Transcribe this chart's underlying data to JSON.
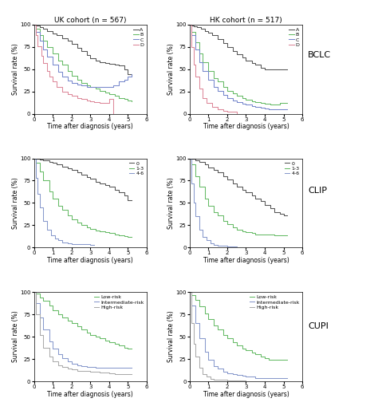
{
  "title_uk": "UK cohort (n = 567)",
  "title_hk": "HK cohort (n = 517)",
  "row_labels": [
    "BCLC",
    "CLIP",
    "CUPI"
  ],
  "xlabel": "Time after diagnosis (years)",
  "ylabel": "Survival rate (%)",
  "xlim": [
    0,
    6
  ],
  "ylim": [
    0,
    100
  ],
  "xticks": [
    0,
    1,
    2,
    3,
    4,
    5,
    6
  ],
  "yticks": [
    0,
    25,
    50,
    75,
    100
  ],
  "bclc_legend": [
    "A",
    "B",
    "C",
    "D"
  ],
  "clip_legend": [
    "0",
    "1-3",
    "4-6"
  ],
  "cupi_legend": [
    "Low-risk",
    "Intermediate-risk",
    "High-risk"
  ],
  "colors_bclc": [
    "#555555",
    "#66bb66",
    "#7788cc",
    "#dd8899"
  ],
  "colors_clip": [
    "#555555",
    "#66bb66",
    "#8899cc"
  ],
  "colors_cupi": [
    "#66bb66",
    "#8899cc",
    "#aaaaaa"
  ],
  "bclc_uk_A": [
    [
      0,
      0.1,
      0.3,
      0.5,
      0.7,
      1.0,
      1.2,
      1.5,
      1.8,
      2.0,
      2.3,
      2.5,
      2.8,
      3.0,
      3.3,
      3.5,
      3.8,
      4.0,
      4.3,
      4.5,
      4.8,
      5.0,
      5.2
    ],
    [
      100,
      99,
      97,
      95,
      93,
      90,
      88,
      85,
      82,
      78,
      74,
      70,
      66,
      62,
      60,
      58,
      57,
      56,
      55,
      54,
      50,
      44,
      43
    ]
  ],
  "bclc_uk_B": [
    [
      0,
      0.1,
      0.3,
      0.5,
      0.7,
      1.0,
      1.3,
      1.5,
      1.8,
      2.0,
      2.3,
      2.5,
      2.8,
      3.0,
      3.3,
      3.5,
      3.8,
      4.0,
      4.3,
      4.5,
      4.8,
      5.0,
      5.2
    ],
    [
      100,
      95,
      88,
      82,
      75,
      68,
      60,
      55,
      48,
      43,
      38,
      35,
      32,
      30,
      28,
      26,
      24,
      22,
      20,
      18,
      17,
      15,
      14
    ]
  ],
  "bclc_uk_C": [
    [
      0,
      0.1,
      0.3,
      0.5,
      0.7,
      1.0,
      1.3,
      1.5,
      1.8,
      2.0,
      2.3,
      2.5,
      2.8,
      3.0,
      3.3,
      3.5,
      3.8,
      4.0,
      4.2,
      4.5,
      4.8,
      5.0,
      5.2
    ],
    [
      100,
      92,
      82,
      72,
      64,
      55,
      47,
      42,
      37,
      35,
      33,
      32,
      30,
      30,
      30,
      30,
      30,
      30,
      32,
      36,
      38,
      42,
      44
    ]
  ],
  "bclc_uk_D": [
    [
      0,
      0.1,
      0.2,
      0.4,
      0.5,
      0.7,
      0.8,
      1.0,
      1.2,
      1.5,
      1.8,
      2.0,
      2.3,
      2.5,
      2.8,
      3.0,
      3.2,
      3.5,
      3.8,
      4.0,
      4.2
    ],
    [
      100,
      88,
      76,
      65,
      57,
      48,
      42,
      36,
      30,
      25,
      22,
      20,
      18,
      17,
      15,
      14,
      13,
      12,
      12,
      17,
      0
    ]
  ],
  "bclc_hk_A": [
    [
      0,
      0.1,
      0.2,
      0.4,
      0.6,
      0.8,
      1.0,
      1.2,
      1.5,
      1.8,
      2.0,
      2.3,
      2.5,
      2.8,
      3.0,
      3.3,
      3.5,
      3.8,
      4.0,
      4.3,
      4.5,
      5.0,
      5.2
    ],
    [
      100,
      99,
      98,
      97,
      95,
      93,
      91,
      88,
      84,
      79,
      75,
      70,
      67,
      63,
      60,
      57,
      55,
      52,
      50,
      50,
      50,
      50,
      50
    ]
  ],
  "bclc_hk_B": [
    [
      0,
      0.1,
      0.3,
      0.5,
      0.7,
      1.0,
      1.3,
      1.5,
      1.8,
      2.0,
      2.3,
      2.5,
      2.8,
      3.0,
      3.3,
      3.5,
      3.8,
      4.0,
      4.3,
      4.5,
      4.8,
      5.0,
      5.2
    ],
    [
      100,
      92,
      80,
      68,
      58,
      48,
      40,
      36,
      30,
      26,
      23,
      20,
      18,
      16,
      14,
      13,
      12,
      11,
      10,
      10,
      12,
      12,
      12
    ]
  ],
  "bclc_hk_C": [
    [
      0,
      0.1,
      0.3,
      0.5,
      0.7,
      1.0,
      1.3,
      1.5,
      1.8,
      2.0,
      2.3,
      2.5,
      2.8,
      3.0,
      3.3,
      3.5,
      3.8,
      4.0,
      4.2,
      5.0,
      5.2
    ],
    [
      100,
      88,
      72,
      58,
      48,
      38,
      30,
      26,
      21,
      18,
      15,
      13,
      11,
      10,
      9,
      8,
      7,
      6,
      5,
      5,
      5
    ]
  ],
  "bclc_hk_D": [
    [
      0,
      0.1,
      0.2,
      0.3,
      0.5,
      0.7,
      0.9,
      1.2,
      1.5,
      1.8,
      2.0,
      2.5
    ],
    [
      100,
      75,
      55,
      42,
      28,
      18,
      12,
      8,
      5,
      3,
      2,
      1
    ]
  ],
  "clip_uk_0": [
    [
      0,
      0.1,
      0.3,
      0.5,
      0.8,
      1.0,
      1.2,
      1.5,
      1.8,
      2.0,
      2.3,
      2.5,
      2.8,
      3.0,
      3.3,
      3.5,
      3.8,
      4.0,
      4.3,
      4.5,
      4.8,
      5.0,
      5.2
    ],
    [
      100,
      100,
      99,
      98,
      96,
      95,
      93,
      91,
      89,
      87,
      84,
      82,
      79,
      77,
      74,
      72,
      70,
      68,
      65,
      62,
      58,
      53,
      53
    ]
  ],
  "clip_uk_1_3": [
    [
      0,
      0.1,
      0.3,
      0.5,
      0.8,
      1.0,
      1.3,
      1.5,
      1.8,
      2.0,
      2.3,
      2.5,
      2.8,
      3.0,
      3.3,
      3.5,
      3.8,
      4.0,
      4.3,
      4.5,
      4.8,
      5.0,
      5.2
    ],
    [
      100,
      95,
      85,
      75,
      63,
      55,
      47,
      42,
      36,
      32,
      28,
      25,
      23,
      21,
      19,
      18,
      17,
      16,
      15,
      14,
      13,
      12,
      12
    ]
  ],
  "clip_uk_4_6": [
    [
      0,
      0.1,
      0.2,
      0.3,
      0.5,
      0.7,
      0.9,
      1.1,
      1.3,
      1.5,
      1.8,
      2.0,
      2.5,
      3.0,
      3.2
    ],
    [
      100,
      78,
      60,
      45,
      30,
      20,
      14,
      10,
      8,
      6,
      5,
      4,
      4,
      3,
      3
    ]
  ],
  "clip_hk_0": [
    [
      0,
      0.1,
      0.3,
      0.5,
      0.8,
      1.0,
      1.3,
      1.5,
      1.8,
      2.0,
      2.3,
      2.5,
      2.8,
      3.0,
      3.3,
      3.5,
      3.8,
      4.0,
      4.3,
      4.5,
      4.8,
      5.0,
      5.2
    ],
    [
      100,
      100,
      98,
      96,
      93,
      90,
      87,
      84,
      80,
      76,
      72,
      68,
      65,
      62,
      58,
      55,
      52,
      48,
      44,
      40,
      38,
      36,
      36
    ]
  ],
  "clip_hk_1_3": [
    [
      0,
      0.1,
      0.3,
      0.5,
      0.8,
      1.0,
      1.3,
      1.5,
      1.8,
      2.0,
      2.3,
      2.5,
      2.8,
      3.0,
      3.3,
      3.5,
      3.8,
      4.0,
      4.3,
      4.5,
      4.8,
      5.0,
      5.2
    ],
    [
      100,
      93,
      80,
      68,
      55,
      47,
      40,
      36,
      30,
      26,
      23,
      20,
      18,
      17,
      16,
      15,
      15,
      15,
      15,
      14,
      14,
      14,
      14
    ]
  ],
  "clip_hk_4_6": [
    [
      0,
      0.1,
      0.2,
      0.3,
      0.5,
      0.7,
      0.9,
      1.1,
      1.3,
      1.5,
      2.0,
      2.5,
      3.0
    ],
    [
      100,
      72,
      50,
      35,
      20,
      12,
      8,
      5,
      3,
      2,
      1,
      0,
      0
    ]
  ],
  "cupi_uk_low": [
    [
      0,
      0.1,
      0.3,
      0.5,
      0.8,
      1.0,
      1.3,
      1.5,
      1.8,
      2.0,
      2.3,
      2.5,
      2.8,
      3.0,
      3.3,
      3.5,
      3.8,
      4.0,
      4.3,
      4.5,
      4.8,
      5.0,
      5.2
    ],
    [
      100,
      98,
      94,
      90,
      85,
      80,
      75,
      72,
      68,
      65,
      62,
      58,
      55,
      52,
      50,
      48,
      46,
      44,
      42,
      40,
      38,
      37,
      37
    ]
  ],
  "cupi_uk_int": [
    [
      0,
      0.1,
      0.3,
      0.5,
      0.8,
      1.0,
      1.3,
      1.5,
      1.8,
      2.0,
      2.3,
      2.5,
      2.8,
      3.0,
      3.3,
      3.5,
      3.8,
      4.0,
      4.3,
      4.5,
      4.8,
      5.0,
      5.2
    ],
    [
      100,
      88,
      72,
      58,
      45,
      37,
      30,
      26,
      22,
      20,
      18,
      17,
      16,
      16,
      15,
      15,
      15,
      15,
      15,
      15,
      15,
      15,
      15
    ]
  ],
  "cupi_uk_high": [
    [
      0,
      0.1,
      0.3,
      0.5,
      0.8,
      1.0,
      1.3,
      1.5,
      1.8,
      2.0,
      2.3,
      2.5,
      2.8,
      3.0,
      3.3,
      3.5,
      3.8,
      4.0,
      4.3,
      4.5,
      4.8,
      5.0,
      5.2
    ],
    [
      100,
      75,
      52,
      38,
      28,
      22,
      18,
      16,
      14,
      13,
      12,
      12,
      12,
      11,
      11,
      10,
      10,
      9,
      8,
      8,
      8,
      8,
      8
    ]
  ],
  "cupi_hk_low": [
    [
      0,
      0.1,
      0.3,
      0.5,
      0.8,
      1.0,
      1.3,
      1.5,
      1.8,
      2.0,
      2.3,
      2.5,
      2.8,
      3.0,
      3.3,
      3.5,
      3.8,
      4.0,
      4.2,
      5.2
    ],
    [
      100,
      97,
      91,
      84,
      76,
      70,
      63,
      58,
      52,
      48,
      44,
      40,
      37,
      35,
      32,
      30,
      28,
      26,
      24,
      24
    ]
  ],
  "cupi_hk_int": [
    [
      0,
      0.1,
      0.3,
      0.5,
      0.8,
      1.0,
      1.3,
      1.5,
      1.8,
      2.0,
      2.3,
      2.5,
      2.8,
      3.0,
      3.3,
      3.5,
      3.8,
      4.0,
      4.3,
      4.5,
      4.8,
      5.0,
      5.2
    ],
    [
      100,
      85,
      65,
      48,
      33,
      24,
      17,
      14,
      11,
      9,
      8,
      7,
      6,
      5,
      5,
      4,
      4,
      4,
      4,
      4,
      4,
      4,
      4
    ]
  ],
  "cupi_hk_high": [
    [
      0,
      0.1,
      0.2,
      0.3,
      0.5,
      0.7,
      0.9,
      1.1,
      1.3,
      1.5,
      2.0,
      2.5,
      3.0
    ],
    [
      100,
      65,
      42,
      28,
      15,
      8,
      5,
      3,
      2,
      2,
      1,
      1,
      0
    ]
  ]
}
